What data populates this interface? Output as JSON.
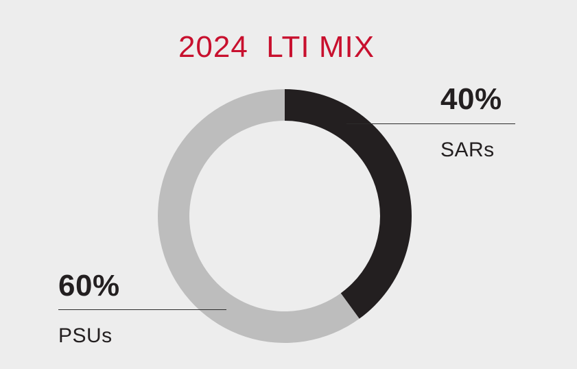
{
  "chart_data": {
    "type": "pie",
    "title": "2024  LTI MIX",
    "categories": [
      "SARs",
      "PSUs"
    ],
    "values": [
      40,
      60
    ],
    "value_labels": [
      "40%",
      "60%"
    ],
    "colors": [
      "#231f20",
      "#bdbdbd"
    ],
    "style": "donut",
    "start": "12 o'clock, clockwise"
  }
}
